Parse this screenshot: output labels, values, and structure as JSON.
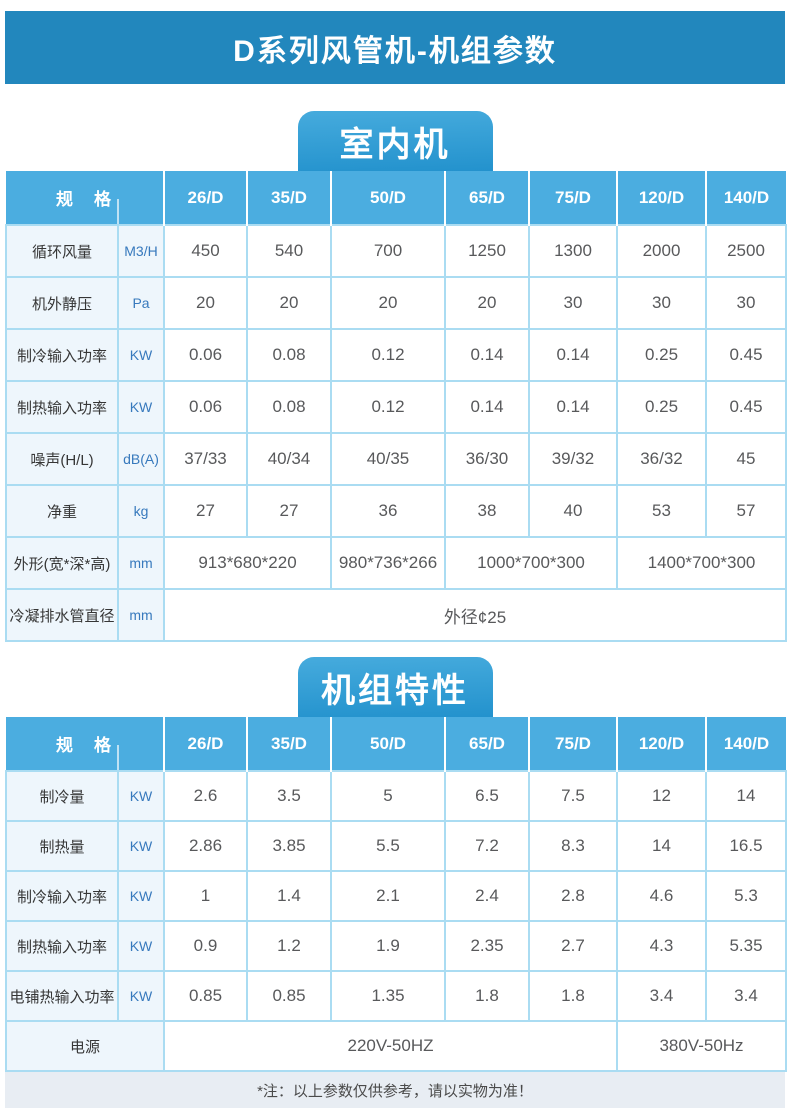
{
  "page": {
    "title": "D系列风管机-机组参数",
    "footer_note": "*注：以上参数仅供参考，请以实物为准！"
  },
  "colors": {
    "banner": "#2287bd",
    "badge_top": "#46abdd",
    "badge_bottom": "#2392cd",
    "table_header": "#4bade0",
    "cell_border": "#aadcf2",
    "label_background": "#eef6fc",
    "unit_text": "#3779bd",
    "value_text": "#58595b",
    "note_background": "#e8edf3"
  },
  "tables": [
    {
      "badge": "室内机",
      "header": {
        "spec_label": "规　格",
        "columns": [
          "26/D",
          "35/D",
          "50/D",
          "65/D",
          "75/D",
          "120/D",
          "140/D"
        ]
      },
      "rows": [
        {
          "label": "循环风量",
          "unit": "M3/H",
          "values": [
            "450",
            "540",
            "700",
            "1250",
            "1300",
            "2000",
            "2500"
          ]
        },
        {
          "label": "机外静压",
          "unit": "Pa",
          "values": [
            "20",
            "20",
            "20",
            "20",
            "30",
            "30",
            "30"
          ]
        },
        {
          "label": "制冷输入功率",
          "unit": "KW",
          "values": [
            "0.06",
            "0.08",
            "0.12",
            "0.14",
            "0.14",
            "0.25",
            "0.45"
          ]
        },
        {
          "label": "制热输入功率",
          "unit": "KW",
          "values": [
            "0.06",
            "0.08",
            "0.12",
            "0.14",
            "0.14",
            "0.25",
            "0.45"
          ]
        },
        {
          "label": "噪声(H/L)",
          "unit": "dB(A)",
          "values": [
            "37/33",
            "40/34",
            "40/35",
            "36/30",
            "39/32",
            "36/32",
            "45"
          ]
        },
        {
          "label": "净重",
          "unit": "kg",
          "values": [
            "27",
            "27",
            "36",
            "38",
            "40",
            "53",
            "57"
          ]
        },
        {
          "label": "外形(宽*深*高)",
          "unit": "mm",
          "spans": [
            {
              "text": "913*680*220",
              "cols": 2
            },
            {
              "text": "980*736*266",
              "cols": 1
            },
            {
              "text": "1000*700*300",
              "cols": 2
            },
            {
              "text": "1400*700*300",
              "cols": 2
            }
          ]
        },
        {
          "label": "冷凝排水管直径",
          "unit": "mm",
          "spans": [
            {
              "text": "外径¢25",
              "cols": 7
            }
          ]
        }
      ]
    },
    {
      "badge": "机组特性",
      "header": {
        "spec_label": "规　格",
        "columns": [
          "26/D",
          "35/D",
          "50/D",
          "65/D",
          "75/D",
          "120/D",
          "140/D"
        ]
      },
      "rows": [
        {
          "label": "制冷量",
          "unit": "KW",
          "values": [
            "2.6",
            "3.5",
            "5",
            "6.5",
            "7.5",
            "12",
            "14"
          ]
        },
        {
          "label": "制热量",
          "unit": "KW",
          "values": [
            "2.86",
            "3.85",
            "5.5",
            "7.2",
            "8.3",
            "14",
            "16.5"
          ]
        },
        {
          "label": "制冷输入功率",
          "unit": "KW",
          "values": [
            "1",
            "1.4",
            "2.1",
            "2.4",
            "2.8",
            "4.6",
            "5.3"
          ]
        },
        {
          "label": "制热输入功率",
          "unit": "KW",
          "values": [
            "0.9",
            "1.2",
            "1.9",
            "2.35",
            "2.7",
            "4.3",
            "5.35"
          ]
        },
        {
          "label": "电铺热输入功率",
          "unit": "KW",
          "values": [
            "0.85",
            "0.85",
            "1.35",
            "1.8",
            "1.8",
            "3.4",
            "3.4"
          ]
        },
        {
          "label": "电源",
          "label_colspan": 2,
          "spans": [
            {
              "text": "220V-50HZ",
              "cols": 5
            },
            {
              "text": "380V-50Hz",
              "cols": 2
            }
          ]
        }
      ]
    }
  ]
}
